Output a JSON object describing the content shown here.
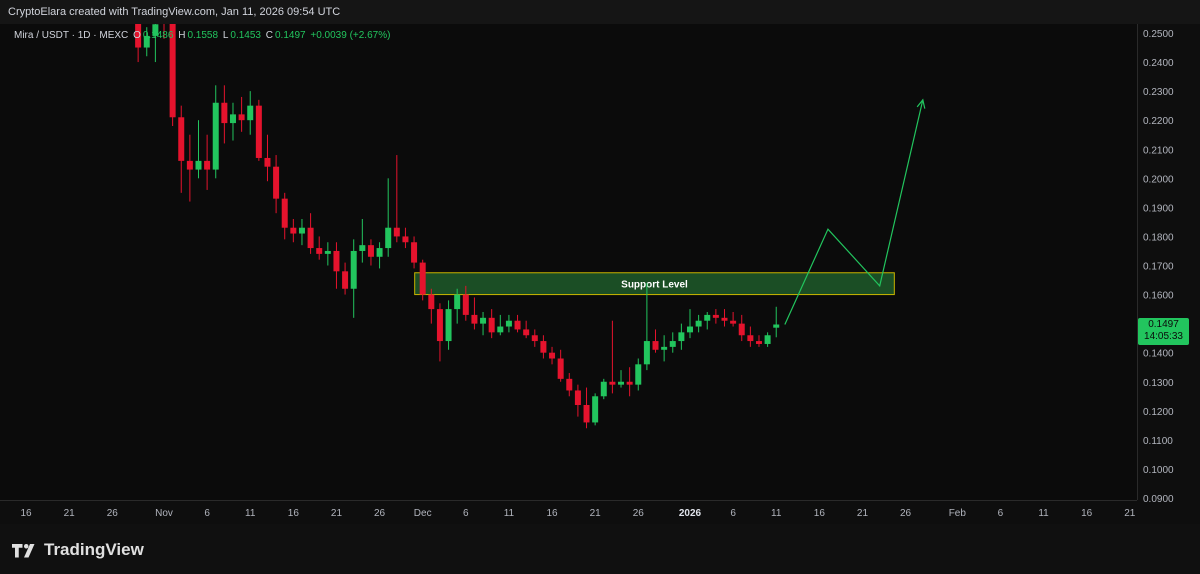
{
  "attribution": "CryptoElara created with TradingView.com, Jan 11, 2026 09:54 UTC",
  "legend": {
    "symbol": "Mira / USDT · 1D · MEXC",
    "open_label": "O",
    "open": "0.1486",
    "high_label": "H",
    "high": "0.1558",
    "low_label": "L",
    "low": "0.1453",
    "close_label": "C",
    "close": "0.1497",
    "change": "+0.0039 (+2.67%)"
  },
  "last_price": {
    "value": "0.1497",
    "countdown": "14:05:33"
  },
  "brand": {
    "name": "TradingView",
    "logo_text": "TV"
  },
  "colors": {
    "up": "#22c55e",
    "down": "#e5132d",
    "zone": "#1f5a2a",
    "zone_border": "#c8b400",
    "projection": "#22c55e"
  },
  "chart_data": {
    "type": "candlestick",
    "symbol": "Mira / USDT",
    "timeframe": "1D",
    "exchange": "MEXC",
    "y_axis": {
      "range": [
        0.09,
        0.25
      ],
      "tick_labels": [
        "0.2500",
        "0.2400",
        "0.2300",
        "0.2200",
        "0.2100",
        "0.2000",
        "0.1900",
        "0.1800",
        "0.1700",
        "0.1600",
        "0.1500",
        "0.1400",
        "0.1300",
        "0.1200",
        "0.1100",
        "0.1000",
        "0.0900"
      ]
    },
    "x_axis": {
      "tick_labels": [
        "16",
        "21",
        "26",
        "Nov",
        "6",
        "11",
        "16",
        "21",
        "26",
        "Dec",
        "6",
        "11",
        "16",
        "21",
        "26",
        "2026",
        "6",
        "11",
        "16",
        "21",
        "26",
        "Feb",
        "6",
        "11",
        "16",
        "21"
      ]
    },
    "candles": [
      {
        "d": "Oct 29",
        "o": 0.258,
        "h": 0.262,
        "l": 0.24,
        "c": 0.245
      },
      {
        "d": "Oct 30",
        "o": 0.245,
        "h": 0.252,
        "l": 0.242,
        "c": 0.249
      },
      {
        "d": "Oct 31",
        "o": 0.249,
        "h": 0.256,
        "l": 0.24,
        "c": 0.253
      },
      {
        "d": "Nov 1",
        "o": 0.256,
        "h": 0.26,
        "l": 0.248,
        "c": 0.254
      },
      {
        "d": "Nov 2",
        "o": 0.254,
        "h": 0.256,
        "l": 0.218,
        "c": 0.221
      },
      {
        "d": "Nov 3",
        "o": 0.221,
        "h": 0.225,
        "l": 0.195,
        "c": 0.206
      },
      {
        "d": "Nov 4",
        "o": 0.206,
        "h": 0.215,
        "l": 0.192,
        "c": 0.203
      },
      {
        "d": "Nov 5",
        "o": 0.203,
        "h": 0.22,
        "l": 0.2,
        "c": 0.206
      },
      {
        "d": "Nov 6",
        "o": 0.206,
        "h": 0.215,
        "l": 0.196,
        "c": 0.203
      },
      {
        "d": "Nov 7",
        "o": 0.203,
        "h": 0.232,
        "l": 0.2,
        "c": 0.226
      },
      {
        "d": "Nov 8",
        "o": 0.226,
        "h": 0.232,
        "l": 0.212,
        "c": 0.219
      },
      {
        "d": "Nov 9",
        "o": 0.219,
        "h": 0.226,
        "l": 0.213,
        "c": 0.222
      },
      {
        "d": "Nov 10",
        "o": 0.222,
        "h": 0.228,
        "l": 0.216,
        "c": 0.22
      },
      {
        "d": "Nov 11",
        "o": 0.22,
        "h": 0.23,
        "l": 0.215,
        "c": 0.225
      },
      {
        "d": "Nov 12",
        "o": 0.225,
        "h": 0.227,
        "l": 0.206,
        "c": 0.207
      },
      {
        "d": "Nov 13",
        "o": 0.207,
        "h": 0.215,
        "l": 0.199,
        "c": 0.204
      },
      {
        "d": "Nov 14",
        "o": 0.204,
        "h": 0.208,
        "l": 0.188,
        "c": 0.193
      },
      {
        "d": "Nov 15",
        "o": 0.193,
        "h": 0.195,
        "l": 0.179,
        "c": 0.183
      },
      {
        "d": "Nov 16",
        "o": 0.183,
        "h": 0.186,
        "l": 0.178,
        "c": 0.181
      },
      {
        "d": "Nov 17",
        "o": 0.181,
        "h": 0.186,
        "l": 0.177,
        "c": 0.183
      },
      {
        "d": "Nov 18",
        "o": 0.183,
        "h": 0.188,
        "l": 0.174,
        "c": 0.176
      },
      {
        "d": "Nov 19",
        "o": 0.176,
        "h": 0.18,
        "l": 0.172,
        "c": 0.174
      },
      {
        "d": "Nov 20",
        "o": 0.174,
        "h": 0.178,
        "l": 0.17,
        "c": 0.175
      },
      {
        "d": "Nov 21",
        "o": 0.175,
        "h": 0.178,
        "l": 0.162,
        "c": 0.168
      },
      {
        "d": "Nov 22",
        "o": 0.168,
        "h": 0.171,
        "l": 0.16,
        "c": 0.162
      },
      {
        "d": "Nov 23",
        "o": 0.162,
        "h": 0.179,
        "l": 0.152,
        "c": 0.175
      },
      {
        "d": "Nov 24",
        "o": 0.175,
        "h": 0.186,
        "l": 0.171,
        "c": 0.177
      },
      {
        "d": "Nov 25",
        "o": 0.177,
        "h": 0.179,
        "l": 0.17,
        "c": 0.173
      },
      {
        "d": "Nov 26",
        "o": 0.173,
        "h": 0.178,
        "l": 0.169,
        "c": 0.176
      },
      {
        "d": "Nov 27",
        "o": 0.176,
        "h": 0.2,
        "l": 0.173,
        "c": 0.183
      },
      {
        "d": "Nov 28",
        "o": 0.183,
        "h": 0.208,
        "l": 0.178,
        "c": 0.18
      },
      {
        "d": "Nov 29",
        "o": 0.18,
        "h": 0.183,
        "l": 0.176,
        "c": 0.178
      },
      {
        "d": "Nov 30",
        "o": 0.178,
        "h": 0.18,
        "l": 0.169,
        "c": 0.171
      },
      {
        "d": "Dec 1",
        "o": 0.171,
        "h": 0.172,
        "l": 0.158,
        "c": 0.16
      },
      {
        "d": "Dec 2",
        "o": 0.16,
        "h": 0.162,
        "l": 0.15,
        "c": 0.155
      },
      {
        "d": "Dec 3",
        "o": 0.155,
        "h": 0.157,
        "l": 0.137,
        "c": 0.144
      },
      {
        "d": "Dec 4",
        "o": 0.144,
        "h": 0.158,
        "l": 0.141,
        "c": 0.155
      },
      {
        "d": "Dec 5",
        "o": 0.155,
        "h": 0.162,
        "l": 0.15,
        "c": 0.16
      },
      {
        "d": "Dec 6",
        "o": 0.16,
        "h": 0.163,
        "l": 0.151,
        "c": 0.153
      },
      {
        "d": "Dec 7",
        "o": 0.153,
        "h": 0.159,
        "l": 0.148,
        "c": 0.15
      },
      {
        "d": "Dec 8",
        "o": 0.15,
        "h": 0.154,
        "l": 0.146,
        "c": 0.152
      },
      {
        "d": "Dec 9",
        "o": 0.152,
        "h": 0.155,
        "l": 0.145,
        "c": 0.147
      },
      {
        "d": "Dec 10",
        "o": 0.147,
        "h": 0.153,
        "l": 0.146,
        "c": 0.149
      },
      {
        "d": "Dec 11",
        "o": 0.149,
        "h": 0.153,
        "l": 0.147,
        "c": 0.151
      },
      {
        "d": "Dec 12",
        "o": 0.151,
        "h": 0.153,
        "l": 0.147,
        "c": 0.148
      },
      {
        "d": "Dec 13",
        "o": 0.148,
        "h": 0.151,
        "l": 0.145,
        "c": 0.146
      },
      {
        "d": "Dec 14",
        "o": 0.146,
        "h": 0.148,
        "l": 0.142,
        "c": 0.144
      },
      {
        "d": "Dec 15",
        "o": 0.144,
        "h": 0.146,
        "l": 0.138,
        "c": 0.14
      },
      {
        "d": "Dec 16",
        "o": 0.14,
        "h": 0.142,
        "l": 0.136,
        "c": 0.138
      },
      {
        "d": "Dec 17",
        "o": 0.138,
        "h": 0.141,
        "l": 0.13,
        "c": 0.131
      },
      {
        "d": "Dec 18",
        "o": 0.131,
        "h": 0.133,
        "l": 0.125,
        "c": 0.127
      },
      {
        "d": "Dec 19",
        "o": 0.127,
        "h": 0.129,
        "l": 0.118,
        "c": 0.122
      },
      {
        "d": "Dec 20",
        "o": 0.122,
        "h": 0.128,
        "l": 0.114,
        "c": 0.116
      },
      {
        "d": "Dec 21",
        "o": 0.116,
        "h": 0.126,
        "l": 0.115,
        "c": 0.125
      },
      {
        "d": "Dec 22",
        "o": 0.125,
        "h": 0.131,
        "l": 0.124,
        "c": 0.13
      },
      {
        "d": "Dec 23",
        "o": 0.13,
        "h": 0.151,
        "l": 0.126,
        "c": 0.129
      },
      {
        "d": "Dec 24",
        "o": 0.129,
        "h": 0.134,
        "l": 0.128,
        "c": 0.13
      },
      {
        "d": "Dec 25",
        "o": 0.13,
        "h": 0.135,
        "l": 0.125,
        "c": 0.129
      },
      {
        "d": "Dec 26",
        "o": 0.129,
        "h": 0.138,
        "l": 0.127,
        "c": 0.136
      },
      {
        "d": "Dec 27",
        "o": 0.136,
        "h": 0.164,
        "l": 0.134,
        "c": 0.144
      },
      {
        "d": "Dec 28",
        "o": 0.144,
        "h": 0.148,
        "l": 0.14,
        "c": 0.141
      },
      {
        "d": "Dec 29",
        "o": 0.141,
        "h": 0.146,
        "l": 0.137,
        "c": 0.142
      },
      {
        "d": "Dec 30",
        "o": 0.142,
        "h": 0.147,
        "l": 0.14,
        "c": 0.144
      },
      {
        "d": "Dec 31",
        "o": 0.144,
        "h": 0.15,
        "l": 0.141,
        "c": 0.147
      },
      {
        "d": "Jan 1",
        "o": 0.147,
        "h": 0.155,
        "l": 0.145,
        "c": 0.149
      },
      {
        "d": "Jan 2",
        "o": 0.149,
        "h": 0.153,
        "l": 0.147,
        "c": 0.151
      },
      {
        "d": "Jan 3",
        "o": 0.151,
        "h": 0.154,
        "l": 0.148,
        "c": 0.153
      },
      {
        "d": "Jan 4",
        "o": 0.153,
        "h": 0.155,
        "l": 0.15,
        "c": 0.152
      },
      {
        "d": "Jan 5",
        "o": 0.152,
        "h": 0.155,
        "l": 0.149,
        "c": 0.151
      },
      {
        "d": "Jan 6",
        "o": 0.151,
        "h": 0.154,
        "l": 0.149,
        "c": 0.15
      },
      {
        "d": "Jan 7",
        "o": 0.15,
        "h": 0.153,
        "l": 0.144,
        "c": 0.146
      },
      {
        "d": "Jan 8",
        "o": 0.146,
        "h": 0.149,
        "l": 0.142,
        "c": 0.144
      },
      {
        "d": "Jan 9",
        "o": 0.144,
        "h": 0.146,
        "l": 0.142,
        "c": 0.143
      },
      {
        "d": "Jan 10",
        "o": 0.143,
        "h": 0.147,
        "l": 0.142,
        "c": 0.146
      },
      {
        "d": "Jan 11",
        "o": 0.1486,
        "h": 0.1558,
        "l": 0.1453,
        "c": 0.1497
      }
    ],
    "support_zone": {
      "label": "Support Level",
      "low": 0.16,
      "high": 0.1675,
      "from": "Dec 1",
      "to": "Jan 24"
    },
    "projection_path": [
      {
        "d": "Jan 12",
        "p": 0.1497
      },
      {
        "d": "Jan 17",
        "p": 0.1825
      },
      {
        "d": "Jan 23",
        "p": 0.163
      },
      {
        "d": "Jan 28",
        "p": 0.227
      }
    ]
  }
}
